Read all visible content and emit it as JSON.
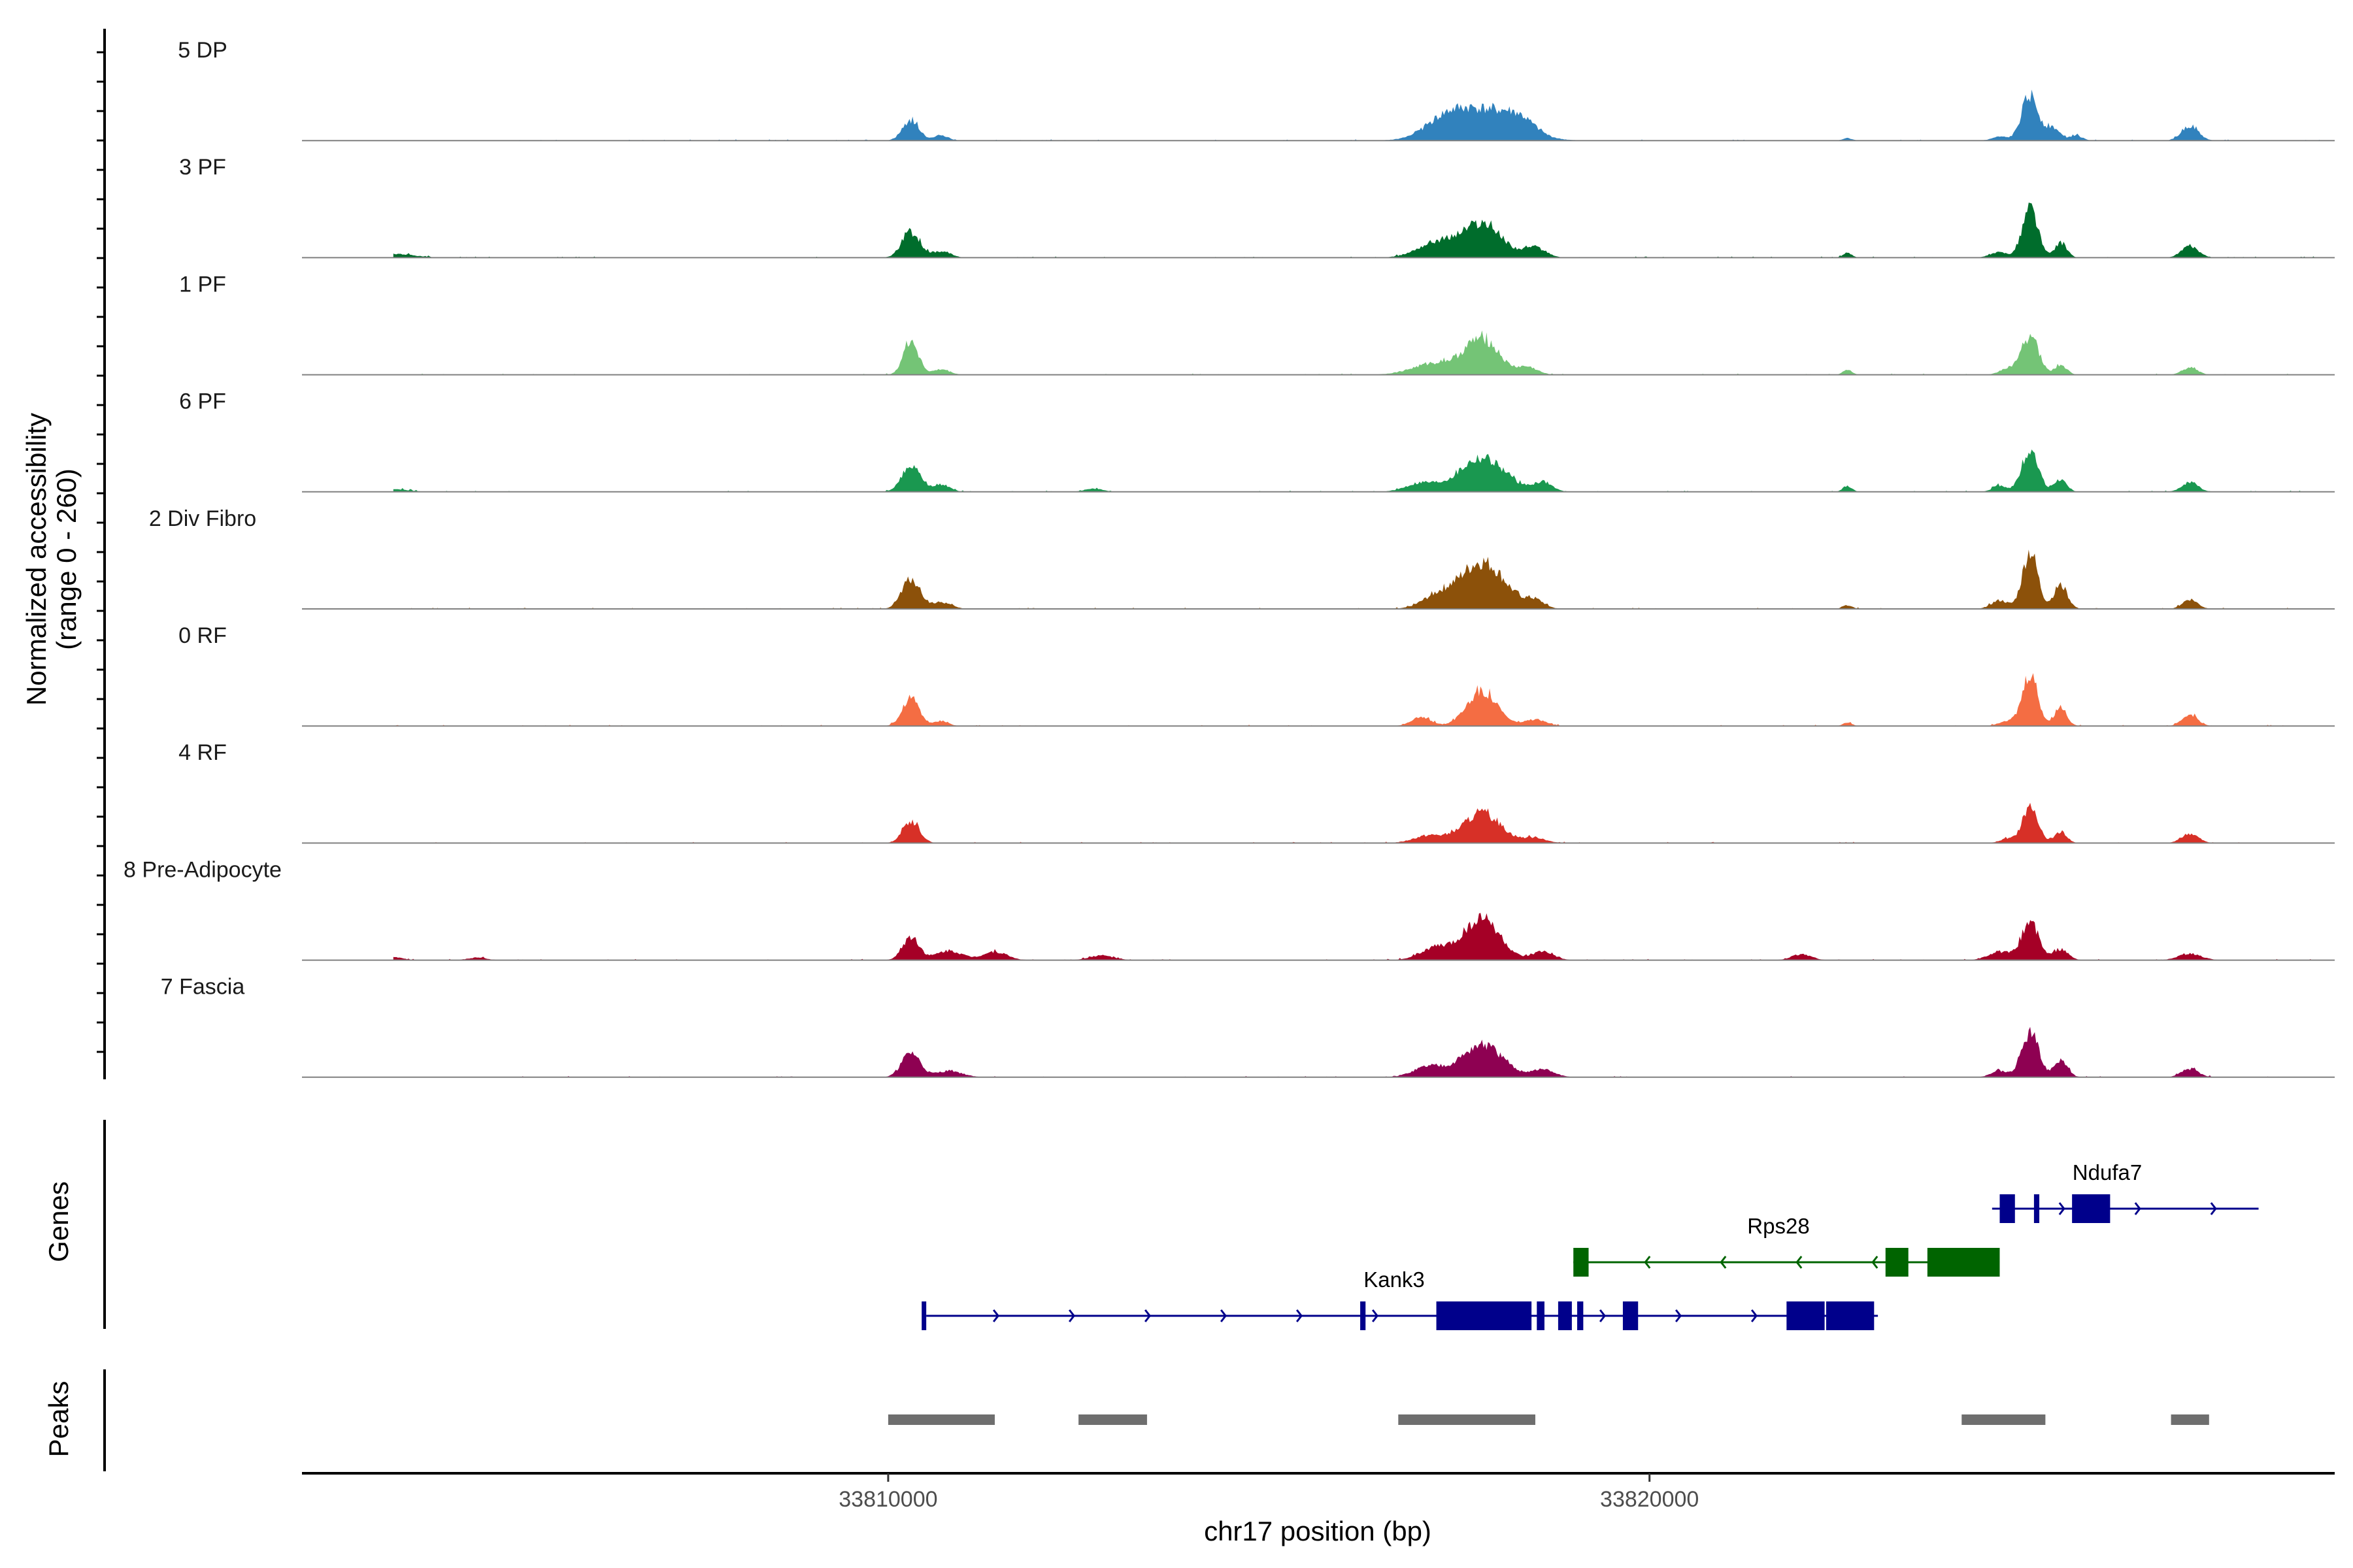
{
  "chart_data": {
    "type": "area",
    "title": "",
    "xlabel": "chr17 position (bp)",
    "ylabel_line1": "Normalized accessibility",
    "ylabel_line2": "(range 0 - 260)",
    "y_range": [
      0,
      260
    ],
    "x_range": [
      33802300,
      33829000
    ],
    "x_ticks": [
      {
        "value": 33810000,
        "label": "33810000"
      },
      {
        "value": 33820000,
        "label": "33820000"
      }
    ],
    "tracks": [
      {
        "name": "5 DP",
        "color": "#3182bd",
        "peaks": [
          [
            33803200,
            5,
            120
          ],
          [
            33810300,
            95,
            110
          ],
          [
            33810700,
            25,
            90
          ],
          [
            33817800,
            140,
            420
          ],
          [
            33817300,
            60,
            260
          ],
          [
            33818300,
            55,
            200
          ],
          [
            33822600,
            12,
            60
          ],
          [
            33824600,
            18,
            100
          ],
          [
            33825000,
            210,
            110
          ],
          [
            33825300,
            60,
            90
          ],
          [
            33825600,
            25,
            80
          ],
          [
            33827100,
            70,
            110
          ]
        ]
      },
      {
        "name": "3 PF",
        "color": "#006d2c",
        "peaks": [
          [
            33803500,
            18,
            260
          ],
          [
            33810300,
            120,
            120
          ],
          [
            33810700,
            30,
            120
          ],
          [
            33817800,
            160,
            260
          ],
          [
            33817200,
            70,
            250
          ],
          [
            33818500,
            45,
            140
          ],
          [
            33822600,
            22,
            60
          ],
          [
            33824600,
            25,
            120
          ],
          [
            33825000,
            240,
            100
          ],
          [
            33825400,
            70,
            80
          ],
          [
            33827100,
            55,
            110
          ]
        ]
      },
      {
        "name": "1 PF",
        "color": "#74c476",
        "peaks": [
          [
            33810300,
            160,
            100
          ],
          [
            33810700,
            25,
            110
          ],
          [
            33817800,
            165,
            220
          ],
          [
            33817200,
            55,
            300
          ],
          [
            33818400,
            35,
            130
          ],
          [
            33822600,
            22,
            60
          ],
          [
            33824700,
            30,
            100
          ],
          [
            33825000,
            185,
            110
          ],
          [
            33825400,
            45,
            80
          ],
          [
            33827100,
            35,
            100
          ]
        ]
      },
      {
        "name": "6 PF",
        "color": "#1a9850",
        "peaks": [
          [
            33803500,
            12,
            200
          ],
          [
            33810300,
            130,
            120
          ],
          [
            33810700,
            35,
            110
          ],
          [
            33812700,
            15,
            120
          ],
          [
            33817800,
            160,
            300
          ],
          [
            33817000,
            40,
            200
          ],
          [
            33818600,
            45,
            120
          ],
          [
            33822600,
            28,
            60
          ],
          [
            33824600,
            30,
            90
          ],
          [
            33825000,
            190,
            110
          ],
          [
            33825400,
            60,
            80
          ],
          [
            33827100,
            45,
            110
          ]
        ]
      },
      {
        "name": "2 Div Fibro",
        "color": "#8c510a",
        "peaks": [
          [
            33810300,
            140,
            120
          ],
          [
            33810700,
            30,
            130
          ],
          [
            33817800,
            220,
            300
          ],
          [
            33817200,
            50,
            200
          ],
          [
            33818500,
            35,
            120
          ],
          [
            33822600,
            18,
            60
          ],
          [
            33824600,
            40,
            110
          ],
          [
            33825000,
            270,
            100
          ],
          [
            33825400,
            110,
            90
          ],
          [
            33827100,
            45,
            100
          ]
        ]
      },
      {
        "name": "0 RF",
        "color": "#f46d43",
        "peaks": [
          [
            33810300,
            135,
            110
          ],
          [
            33810700,
            25,
            90
          ],
          [
            33817800,
            165,
            200
          ],
          [
            33817000,
            40,
            130
          ],
          [
            33818500,
            30,
            140
          ],
          [
            33822600,
            15,
            60
          ],
          [
            33824700,
            25,
            110
          ],
          [
            33825000,
            245,
            100
          ],
          [
            33825400,
            90,
            80
          ],
          [
            33827100,
            55,
            100
          ]
        ]
      },
      {
        "name": "4 RF",
        "color": "#d73027",
        "peaks": [
          [
            33810300,
            105,
            110
          ],
          [
            33817800,
            140,
            250
          ],
          [
            33817100,
            35,
            200
          ],
          [
            33818500,
            25,
            140
          ],
          [
            33824700,
            20,
            100
          ],
          [
            33825000,
            175,
            100
          ],
          [
            33825400,
            55,
            80
          ],
          [
            33827100,
            45,
            110
          ]
        ]
      },
      {
        "name": "8 Pre-Adipocyte",
        "color": "#a50026",
        "peaks": [
          [
            33803500,
            15,
            120
          ],
          [
            33804600,
            12,
            120
          ],
          [
            33810300,
            110,
            110
          ],
          [
            33810800,
            45,
            170
          ],
          [
            33811400,
            40,
            160
          ],
          [
            33812800,
            22,
            160
          ],
          [
            33817800,
            200,
            230
          ],
          [
            33817200,
            60,
            200
          ],
          [
            33818600,
            40,
            140
          ],
          [
            33822000,
            28,
            130
          ],
          [
            33824600,
            40,
            150
          ],
          [
            33825000,
            185,
            110
          ],
          [
            33825400,
            50,
            100
          ],
          [
            33827100,
            30,
            150
          ]
        ]
      },
      {
        "name": "7 Fascia",
        "color": "#8e0152",
        "peaks": [
          [
            33810300,
            115,
            120
          ],
          [
            33810800,
            30,
            170
          ],
          [
            33817800,
            150,
            270
          ],
          [
            33817100,
            50,
            200
          ],
          [
            33818600,
            35,
            150
          ],
          [
            33824600,
            30,
            110
          ],
          [
            33825000,
            205,
            110
          ],
          [
            33825400,
            80,
            90
          ],
          [
            33827100,
            40,
            110
          ]
        ]
      }
    ],
    "genes": [
      {
        "name": "Kank3",
        "strand": "+",
        "color": "#00008b",
        "start": 33810500,
        "end": 33823000,
        "exons": [
          [
            33810440,
            33810500
          ],
          [
            33816200,
            33816270
          ],
          [
            33817200,
            33818450
          ],
          [
            33818520,
            33818620
          ],
          [
            33818800,
            33818980
          ],
          [
            33819050,
            33819130
          ],
          [
            33819650,
            33819850
          ],
          [
            33821800,
            33822300
          ],
          [
            33822320,
            33822950
          ]
        ]
      },
      {
        "name": "Rps28",
        "strand": "-",
        "color": "#006400",
        "start": 33819000,
        "end": 33824600,
        "exons": [
          [
            33819000,
            33819200
          ],
          [
            33823100,
            33823400
          ],
          [
            33823650,
            33824600
          ]
        ]
      },
      {
        "name": "Ndufa7",
        "strand": "+",
        "color": "#00008b",
        "start": 33824500,
        "end": 33828000,
        "exons": [
          [
            33824600,
            33824800
          ],
          [
            33825050,
            33825120
          ],
          [
            33825550,
            33826050
          ]
        ]
      }
    ],
    "peak_regions": [
      [
        33810000,
        33811400
      ],
      [
        33812500,
        33813400
      ],
      [
        33816700,
        33818500
      ],
      [
        33824100,
        33825200
      ],
      [
        33826850,
        33827350
      ]
    ],
    "panel_labels": {
      "genes": "Genes",
      "peaks": "Peaks"
    }
  }
}
